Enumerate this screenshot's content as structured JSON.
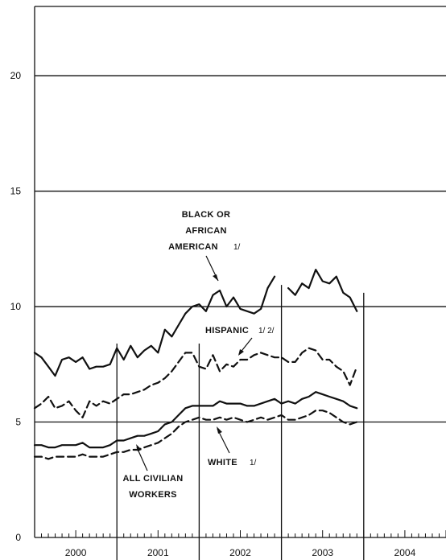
{
  "chart_data": {
    "type": "line",
    "title": "",
    "xlabel": "",
    "ylabel": "",
    "ylim": [
      0,
      23
    ],
    "xlim": [
      2000.0,
      2005.0
    ],
    "y_ticks": [
      "0",
      "5",
      "10",
      "15",
      "20"
    ],
    "x_ticks": [
      "2000",
      "2001",
      "2002",
      "2003",
      "2004"
    ],
    "grid": "horizontal at 5, 10, 15, 20",
    "legend": "none — series labeled by on-chart annotations",
    "annotations": {
      "black": "BLACK OR\nAFRICAN\nAMERICAN",
      "black_note": "1/",
      "hispanic": "HISPANIC",
      "hispanic_note": "1/ 2/",
      "white": "WHITE",
      "white_note": "1/",
      "all": "ALL CIVILIAN\nWORKERS"
    },
    "series": [
      {
        "name": "BLACK OR AFRICAN AMERICAN",
        "style": "solid",
        "x": [
          2000.0,
          2000.083,
          2000.167,
          2000.25,
          2000.333,
          2000.417,
          2000.5,
          2000.583,
          2000.667,
          2000.75,
          2000.833,
          2000.917,
          2001.0,
          2001.083,
          2001.167,
          2001.25,
          2001.333,
          2001.417,
          2001.5,
          2001.583,
          2001.667,
          2001.75,
          2001.833,
          2001.917,
          2002.0,
          2002.083,
          2002.167,
          2002.25,
          2002.333,
          2002.417,
          2002.5,
          2002.583,
          2002.667,
          2002.75,
          2002.833,
          2002.917,
          2003.0,
          2003.083,
          2003.167,
          2003.25,
          2003.333,
          2003.417,
          2003.5,
          2003.583,
          2003.667,
          2003.75,
          2003.833,
          2003.917
        ],
        "y": [
          8.0,
          7.8,
          7.4,
          7.0,
          7.7,
          7.8,
          7.6,
          7.8,
          7.3,
          7.4,
          7.4,
          7.5,
          8.2,
          7.7,
          8.3,
          7.8,
          8.1,
          8.3,
          8.0,
          9.0,
          8.7,
          9.2,
          9.7,
          10.0,
          10.1,
          9.8,
          10.5,
          10.7,
          10.0,
          10.4,
          9.9,
          9.8,
          9.7,
          9.9,
          10.8,
          11.3,
          null,
          10.8,
          10.5,
          11.0,
          10.8,
          11.6,
          11.1,
          11.0,
          11.3,
          10.6,
          10.4,
          9.8
        ]
      },
      {
        "name": "HISPANIC",
        "style": "dashed",
        "x": [
          2000.0,
          2000.083,
          2000.167,
          2000.25,
          2000.333,
          2000.417,
          2000.5,
          2000.583,
          2000.667,
          2000.75,
          2000.833,
          2000.917,
          2001.0,
          2001.083,
          2001.167,
          2001.25,
          2001.333,
          2001.417,
          2001.5,
          2001.583,
          2001.667,
          2001.75,
          2001.833,
          2001.917,
          2002.0,
          2002.083,
          2002.167,
          2002.25,
          2002.333,
          2002.417,
          2002.5,
          2002.583,
          2002.667,
          2002.75,
          2002.833,
          2002.917,
          2003.0,
          2003.083,
          2003.167,
          2003.25,
          2003.333,
          2003.417,
          2003.5,
          2003.583,
          2003.667,
          2003.75,
          2003.833,
          2003.917
        ],
        "y": [
          5.6,
          5.8,
          6.1,
          5.6,
          5.7,
          5.9,
          5.5,
          5.2,
          5.9,
          5.7,
          5.9,
          5.8,
          6.0,
          6.2,
          6.2,
          6.3,
          6.4,
          6.6,
          6.7,
          6.9,
          7.2,
          7.6,
          8.0,
          8.0,
          7.4,
          7.3,
          7.9,
          7.2,
          7.5,
          7.4,
          7.7,
          7.7,
          7.9,
          8.0,
          7.9,
          7.8,
          7.8,
          7.6,
          7.6,
          8.0,
          8.2,
          8.1,
          7.7,
          7.7,
          7.4,
          7.2,
          6.6,
          7.4
        ]
      },
      {
        "name": "ALL CIVILIAN WORKERS",
        "style": "solid",
        "x": [
          2000.0,
          2000.083,
          2000.167,
          2000.25,
          2000.333,
          2000.417,
          2000.5,
          2000.583,
          2000.667,
          2000.75,
          2000.833,
          2000.917,
          2001.0,
          2001.083,
          2001.167,
          2001.25,
          2001.333,
          2001.417,
          2001.5,
          2001.583,
          2001.667,
          2001.75,
          2001.833,
          2001.917,
          2002.0,
          2002.083,
          2002.167,
          2002.25,
          2002.333,
          2002.417,
          2002.5,
          2002.583,
          2002.667,
          2002.75,
          2002.833,
          2002.917,
          2003.0,
          2003.083,
          2003.167,
          2003.25,
          2003.333,
          2003.417,
          2003.5,
          2003.583,
          2003.667,
          2003.75,
          2003.833,
          2003.917
        ],
        "y": [
          4.0,
          4.0,
          3.9,
          3.9,
          4.0,
          4.0,
          4.0,
          4.1,
          3.9,
          3.9,
          3.9,
          4.0,
          4.2,
          4.2,
          4.3,
          4.4,
          4.4,
          4.5,
          4.6,
          4.9,
          5.0,
          5.3,
          5.6,
          5.7,
          5.7,
          5.7,
          5.7,
          5.9,
          5.8,
          5.8,
          5.8,
          5.7,
          5.7,
          5.8,
          5.9,
          6.0,
          5.8,
          5.9,
          5.8,
          6.0,
          6.1,
          6.3,
          6.2,
          6.1,
          6.0,
          5.9,
          5.7,
          5.6
        ]
      },
      {
        "name": "WHITE",
        "style": "dashed",
        "x": [
          2000.0,
          2000.083,
          2000.167,
          2000.25,
          2000.333,
          2000.417,
          2000.5,
          2000.583,
          2000.667,
          2000.75,
          2000.833,
          2000.917,
          2001.0,
          2001.083,
          2001.167,
          2001.25,
          2001.333,
          2001.417,
          2001.5,
          2001.583,
          2001.667,
          2001.75,
          2001.833,
          2001.917,
          2002.0,
          2002.083,
          2002.167,
          2002.25,
          2002.333,
          2002.417,
          2002.5,
          2002.583,
          2002.667,
          2002.75,
          2002.833,
          2002.917,
          2003.0,
          2003.083,
          2003.167,
          2003.25,
          2003.333,
          2003.417,
          2003.5,
          2003.583,
          2003.667,
          2003.75,
          2003.833,
          2003.917
        ],
        "y": [
          3.5,
          3.5,
          3.4,
          3.5,
          3.5,
          3.5,
          3.5,
          3.6,
          3.5,
          3.5,
          3.5,
          3.6,
          3.7,
          3.7,
          3.8,
          3.8,
          3.9,
          4.0,
          4.1,
          4.3,
          4.5,
          4.8,
          5.0,
          5.1,
          5.2,
          5.1,
          5.1,
          5.2,
          5.1,
          5.2,
          5.1,
          5.0,
          5.1,
          5.2,
          5.1,
          5.2,
          5.3,
          5.1,
          5.1,
          5.2,
          5.3,
          5.5,
          5.5,
          5.4,
          5.2,
          5.0,
          4.9,
          5.0
        ]
      }
    ],
    "vertical_markers": [
      2001.0,
      2002.0,
      2003.0,
      2004.0
    ]
  }
}
